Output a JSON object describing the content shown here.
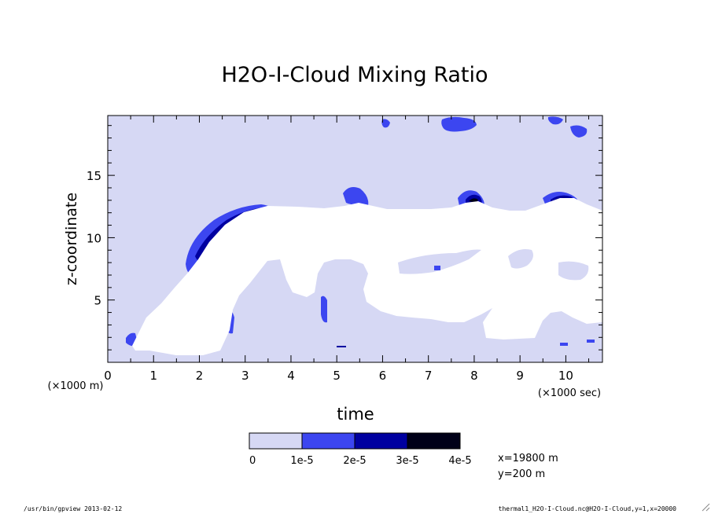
{
  "chart_data": {
    "type": "heatmap",
    "title": "H2O-I-Cloud Mixing Ratio",
    "xlabel": "time",
    "ylabel": "z-coordinate",
    "x_unit": "(×1000 sec)",
    "y_unit": "(×1000 m)",
    "xlim": [
      0,
      10.8
    ],
    "ylim": [
      0,
      19.8
    ],
    "x_ticks": [
      "0",
      "1",
      "2",
      "3",
      "4",
      "5",
      "6",
      "7",
      "8",
      "9",
      "10"
    ],
    "y_ticks": [
      "5",
      "10",
      "15"
    ],
    "legend": {
      "levels": [
        "0",
        "1e-5",
        "2e-5",
        "3e-5",
        "4e-5"
      ],
      "colors": [
        "#d6d8f4",
        "#3c46f0",
        "#0000a0",
        "#000018"
      ]
    },
    "background_color": "#d6d8f4",
    "cloud_free_color": "#ffffff",
    "annotations": [
      "x=19800 m",
      "y=200 m"
    ]
  },
  "footer": {
    "left": "/usr/bin/gpview  2013-02-12",
    "right": "thermal1_H2O-I-Cloud.nc@H2O-I-Cloud,y=1,x=20000"
  }
}
